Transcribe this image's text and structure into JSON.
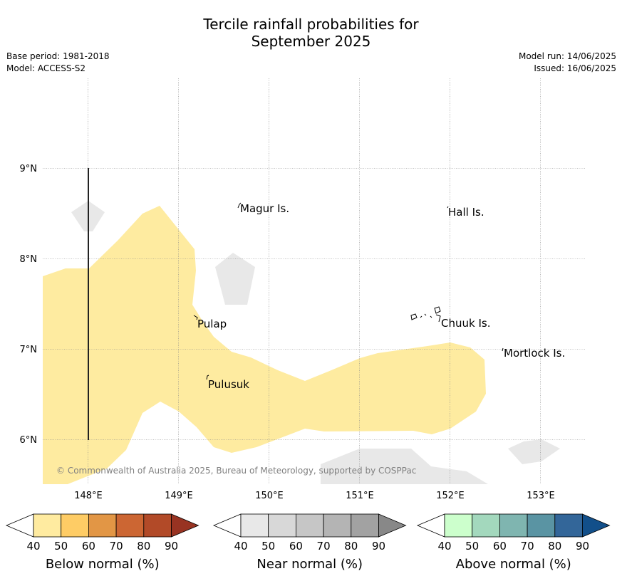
{
  "header": {
    "title_line1": "Tercile rainfall probabilities for",
    "title_line2": "September 2025",
    "base_period": "Base period: 1981-2018",
    "model": "Model: ACCESS-S2",
    "model_run": "Model run: 14/06/2025",
    "issued": "Issued: 16/06/2025"
  },
  "map": {
    "lon_ticks": [
      "148°E",
      "149°E",
      "150°E",
      "151°E",
      "152°E",
      "153°E"
    ],
    "lat_ticks": [
      "9°N",
      "8°N",
      "7°N",
      "6°N"
    ],
    "places": [
      "Magur Is.",
      "Hall Is.",
      "Pulap",
      "Chuuk Is.",
      "Mortlock Is.",
      "Pulusuk"
    ],
    "copyright": "© Commonwealth of Australia 2025, Bureau of Meteorology, supported by COSPPac",
    "colors": {
      "below_region": "#feeba0",
      "near_region": "#e8e8e8",
      "grid": "#888888"
    }
  },
  "colorbars": [
    {
      "label": "Below normal (%)",
      "ticks": [
        "40",
        "50",
        "60",
        "70",
        "80",
        "90"
      ],
      "colors": [
        "#ffffff",
        "#ffeba0",
        "#fecc65",
        "#e29645",
        "#cc6633",
        "#b24a28",
        "#983322"
      ]
    },
    {
      "label": "Near normal (%)",
      "ticks": [
        "40",
        "50",
        "60",
        "70",
        "80",
        "90"
      ],
      "colors": [
        "#ffffff",
        "#e8e8e8",
        "#d8d8d8",
        "#c6c6c6",
        "#b4b4b4",
        "#a2a2a2",
        "#888888"
      ]
    },
    {
      "label": "Above normal (%)",
      "ticks": [
        "40",
        "50",
        "60",
        "70",
        "80",
        "90"
      ],
      "colors": [
        "#ffffff",
        "#ccffcc",
        "#a3d8bd",
        "#7fb5b0",
        "#5a94a3",
        "#336699",
        "#124f8a"
      ]
    }
  ]
}
